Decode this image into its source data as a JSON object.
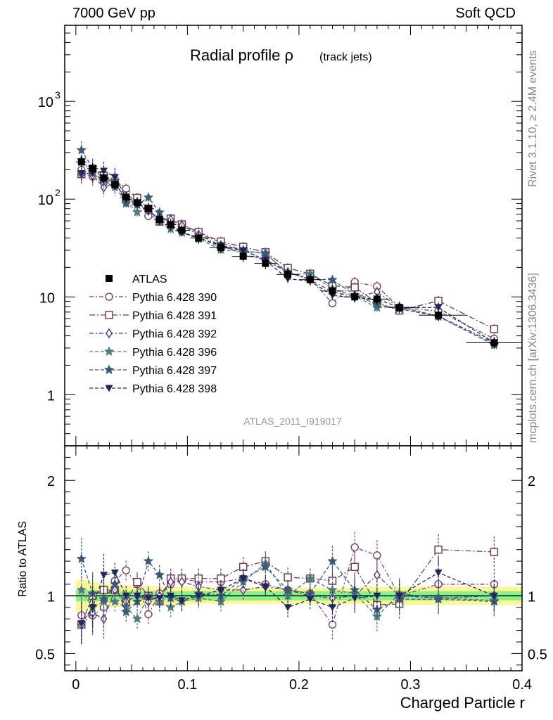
{
  "header": {
    "left": "7000 GeV pp",
    "right": "Soft QCD"
  },
  "side_labels": {
    "rivet": "Rivet 3.1.10, ≥ 2.4M events",
    "mcplots": "mcplots.cern.ch [arXiv:1306.3436]"
  },
  "chart_data": {
    "type": "scatter",
    "title": "Radial profile ρ",
    "title_suffix": "(track jets)",
    "watermark": "ATLAS_2011_I919017",
    "xlabel": "Charged Particle r",
    "ylabel": "",
    "ratio_ylabel": "Ratio to ATLAS",
    "xlim": [
      -0.01,
      0.4
    ],
    "ylim": [
      0.3,
      6000
    ],
    "yscale": "log",
    "ratio_ylim": [
      0.35,
      2.3
    ],
    "x_ticks": [
      "0",
      "0.1",
      "0.2",
      "0.3",
      "0.4"
    ],
    "y_ticks": [
      "1",
      "10",
      "10^2",
      "10^3"
    ],
    "ratio_ticks": [
      "0.5",
      "1",
      "2"
    ],
    "legend_position": "middle-left",
    "x": [
      0.005,
      0.015,
      0.025,
      0.035,
      0.045,
      0.055,
      0.065,
      0.075,
      0.085,
      0.095,
      0.11,
      0.13,
      0.15,
      0.17,
      0.19,
      0.21,
      0.23,
      0.25,
      0.27,
      0.29,
      0.325,
      0.375
    ],
    "data": {
      "name": "ATLAS",
      "values": [
        240,
        205,
        165,
        140,
        105,
        92,
        80,
        62,
        55,
        48,
        40,
        32,
        26,
        22,
        17,
        15,
        11.5,
        10,
        9.5,
        7.8,
        6.5,
        3.4
      ],
      "band_outer": [
        0.14,
        0.12,
        0.1,
        0.1,
        0.09,
        0.08,
        0.08,
        0.08,
        0.08,
        0.08,
        0.07,
        0.07,
        0.07,
        0.07,
        0.07,
        0.07,
        0.07,
        0.07,
        0.08,
        0.08,
        0.08,
        0.08
      ],
      "band_inner": [
        0.05,
        0.05,
        0.04,
        0.04,
        0.04,
        0.04,
        0.04,
        0.04,
        0.04,
        0.04,
        0.04,
        0.04,
        0.04,
        0.04,
        0.04,
        0.04,
        0.04,
        0.04,
        0.04,
        0.04,
        0.04,
        0.04
      ]
    },
    "series": [
      {
        "name": "Pythia 6.428 390",
        "color": "#7a4a73",
        "marker": "circle-open",
        "dash": "6,3,2,3",
        "ratio": [
          0.83,
          0.83,
          0.9,
          1.13,
          1.22,
          1.1,
          0.84,
          1.02,
          1.1,
          1.15,
          1.12,
          1.12,
          1.15,
          1.1,
          1.05,
          1.02,
          0.75,
          1.42,
          1.35,
          1.0,
          1.1,
          1.1
        ]
      },
      {
        "name": "Pythia 6.428 391",
        "color": "#6a3e54",
        "marker": "square-open",
        "dash": "8,3,2,3",
        "ratio": [
          0.75,
          1.0,
          1.05,
          1.05,
          0.95,
          1.12,
          1.0,
          0.95,
          1.15,
          1.15,
          1.15,
          1.15,
          1.25,
          1.3,
          1.16,
          1.15,
          1.13,
          1.25,
          0.92,
          0.93,
          1.4,
          1.38
        ]
      },
      {
        "name": "Pythia 6.428 392",
        "color": "#5b3878",
        "marker": "diamond-open",
        "dash": "6,3,2,3",
        "ratio": [
          0.75,
          0.85,
          0.8,
          1.05,
          0.95,
          1.0,
          0.95,
          1.0,
          1.12,
          1.12,
          1.08,
          1.05,
          1.05,
          1.08,
          1.05,
          1.0,
          0.98,
          1.0,
          1.18,
          1.0,
          0.98,
          1.0
        ]
      },
      {
        "name": "Pythia 6.428 396",
        "color": "#4e7a80",
        "marker": "star-filled",
        "dash": "5,3",
        "ratio": [
          1.05,
          0.9,
          0.95,
          0.95,
          0.9,
          0.8,
          1.0,
          0.95,
          0.9,
          0.95,
          0.98,
          0.95,
          1.12,
          1.28,
          1.0,
          1.15,
          1.05,
          1.02,
          0.82,
          1.02,
          0.98,
          0.96
        ]
      },
      {
        "name": "Pythia 6.428 397",
        "color": "#3c5a78",
        "marker": "star-filled",
        "dash": "5,3",
        "ratio": [
          1.32,
          1.02,
          0.97,
          1.1,
          0.86,
          0.95,
          1.3,
          1.18,
          0.98,
          0.95,
          1.02,
          1.0,
          1.15,
          1.25,
          1.05,
          1.02,
          1.3,
          1.05,
          0.88,
          0.97,
          0.97,
          0.95
        ]
      },
      {
        "name": "Pythia 6.428 398",
        "color": "#1e2a55",
        "marker": "triangle-down-filled",
        "dash": "5,3",
        "ratio": [
          0.76,
          0.9,
          1.18,
          1.2,
          1.0,
          1.0,
          0.98,
          0.98,
          1.0,
          0.96,
          1.0,
          1.05,
          1.15,
          1.08,
          0.9,
          0.97,
          0.9,
          0.98,
          1.0,
          1.0,
          1.2,
          1.0
        ]
      }
    ]
  }
}
